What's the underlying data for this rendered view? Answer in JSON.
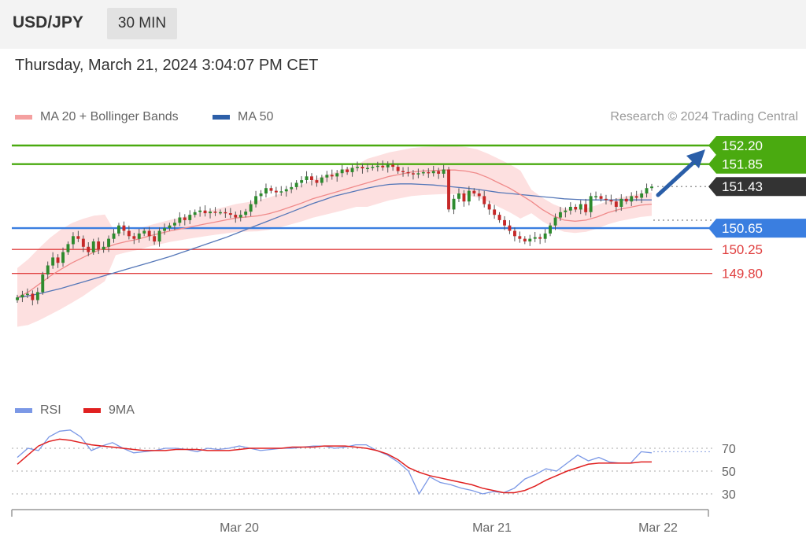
{
  "header": {
    "symbol": "USD/JPY",
    "timeframe": "30 MIN"
  },
  "timestamp": "Thursday, March 21, 2024 3:04:07 PM CET",
  "legend": {
    "ma20": {
      "label": "MA 20 + Bollinger Bands",
      "color": "#f08080"
    },
    "ma50": {
      "label": "MA 50",
      "color": "#2d5fa8"
    },
    "rsi": {
      "label": "RSI",
      "color": "#5b7fdc"
    },
    "rsi_ma": {
      "label": "9MA",
      "color": "#e02020"
    }
  },
  "copyright": "Research © 2024 Trading Central",
  "chart_data": [
    {
      "type": "candlestick",
      "ylim": [
        149.05,
        152.35
      ],
      "levels": [
        {
          "value": 152.2,
          "label": "152.20",
          "kind": "resistance",
          "color": "#4aaa10"
        },
        {
          "value": 151.85,
          "label": "151.85",
          "kind": "resistance",
          "color": "#4aaa10"
        },
        {
          "value": 151.43,
          "label": "151.43",
          "kind": "last-price",
          "color": "#333333"
        },
        {
          "value": 150.65,
          "label": "150.65",
          "kind": "pivot",
          "color": "#3a7ee0"
        },
        {
          "value": 150.25,
          "label": "150.25",
          "kind": "support",
          "color": "#e04040"
        },
        {
          "value": 149.8,
          "label": "149.80",
          "kind": "support",
          "color": "#e04040"
        }
      ],
      "forecast": {
        "direction": "up",
        "target": 152.2
      },
      "closes": [
        149.35,
        149.4,
        149.42,
        149.3,
        149.45,
        149.78,
        149.95,
        150.1,
        150.0,
        150.2,
        150.35,
        150.5,
        150.45,
        150.3,
        150.2,
        150.4,
        150.25,
        150.3,
        150.45,
        150.55,
        150.7,
        150.6,
        150.5,
        150.45,
        150.55,
        150.6,
        150.5,
        150.4,
        150.6,
        150.65,
        150.7,
        150.75,
        150.85,
        150.8,
        150.9,
        150.95,
        150.98,
        150.93,
        150.96,
        150.95,
        150.95,
        150.93,
        150.9,
        150.85,
        150.9,
        150.96,
        151.1,
        151.25,
        151.3,
        151.4,
        151.35,
        151.32,
        151.34,
        151.38,
        151.42,
        151.5,
        151.55,
        151.62,
        151.55,
        151.5,
        151.6,
        151.65,
        151.62,
        151.68,
        151.75,
        151.7,
        151.78,
        151.8,
        151.77,
        151.78,
        151.8,
        151.82,
        151.79,
        151.84,
        151.8,
        151.72,
        151.7,
        151.68,
        151.66,
        151.68,
        151.7,
        151.68,
        151.72,
        151.67,
        151.75,
        151.0,
        151.2,
        151.3,
        151.15,
        151.35,
        151.3,
        151.25,
        151.1,
        151.0,
        150.9,
        150.8,
        150.7,
        150.6,
        150.5,
        150.45,
        150.4,
        150.45,
        150.48,
        150.45,
        150.55,
        150.7,
        150.85,
        150.95,
        150.98,
        151.05,
        151.0,
        151.1,
        150.95,
        151.25,
        151.25,
        151.2,
        151.18,
        151.15,
        151.05,
        151.2,
        151.15,
        151.25,
        151.22,
        151.3,
        151.4,
        151.43
      ],
      "ma20": [
        149.35,
        149.45,
        149.6,
        149.75,
        149.88,
        150.0,
        150.1,
        150.2,
        150.28,
        150.35,
        150.4,
        150.44,
        150.5,
        150.55,
        150.6,
        150.64,
        150.68,
        150.72,
        150.76,
        150.8,
        150.84,
        150.86,
        150.88,
        150.92,
        150.98,
        151.05,
        151.12,
        151.2,
        151.26,
        151.32,
        151.38,
        151.44,
        151.5,
        151.56,
        151.62,
        151.66,
        151.7,
        151.72,
        151.73,
        151.74,
        151.74,
        151.72,
        151.68,
        151.6,
        151.5,
        151.4,
        151.28,
        151.15,
        151.0,
        150.88,
        150.8,
        150.78,
        150.8,
        150.86,
        150.94,
        151.0,
        151.04,
        151.08,
        151.1
      ],
      "ma50": [
        149.35,
        149.38,
        149.42,
        149.47,
        149.52,
        149.58,
        149.64,
        149.7,
        149.76,
        149.82,
        149.88,
        149.94,
        150.0,
        150.06,
        150.12,
        150.19,
        150.26,
        150.33,
        150.4,
        150.47,
        150.55,
        150.63,
        150.71,
        150.79,
        150.87,
        150.95,
        151.03,
        151.11,
        151.18,
        151.25,
        151.3,
        151.35,
        151.4,
        151.44,
        151.47,
        151.48,
        151.48,
        151.47,
        151.46,
        151.44,
        151.42,
        151.4,
        151.38,
        151.35,
        151.32,
        151.3,
        151.28,
        151.26,
        151.24,
        151.22,
        151.2,
        151.19,
        151.18,
        151.18,
        151.18,
        151.18,
        151.18,
        151.18,
        151.18
      ]
    },
    {
      "type": "line",
      "ylim": [
        20,
        100
      ],
      "yticks": [
        70,
        50,
        30
      ],
      "xlabels": [
        "Mar 20",
        "Mar 21",
        "Mar 22"
      ],
      "series": [
        {
          "name": "RSI",
          "values": [
            62,
            70,
            68,
            80,
            85,
            86,
            80,
            68,
            72,
            75,
            70,
            66,
            67,
            68,
            70,
            70,
            69,
            67,
            70,
            69,
            70,
            72,
            70,
            68,
            69,
            70,
            70,
            71,
            72,
            72,
            70,
            71,
            73,
            73,
            68,
            64,
            58,
            50,
            30,
            45,
            40,
            38,
            35,
            33,
            30,
            32,
            31,
            35,
            43,
            47,
            52,
            50,
            57,
            64,
            59,
            62,
            58,
            57,
            57,
            67,
            66
          ]
        },
        {
          "name": "9MA",
          "values": [
            56,
            64,
            72,
            76,
            78,
            77,
            75,
            73,
            72,
            71,
            70,
            69,
            68,
            68,
            68,
            69,
            69,
            69,
            68,
            68,
            68,
            69,
            70,
            70,
            70,
            70,
            71,
            71,
            71,
            72,
            72,
            72,
            71,
            70,
            68,
            65,
            60,
            53,
            49,
            46,
            44,
            42,
            40,
            38,
            35,
            33,
            31,
            31,
            33,
            37,
            42,
            46,
            50,
            53,
            56,
            57,
            57,
            57,
            57,
            58,
            58
          ]
        }
      ]
    }
  ]
}
